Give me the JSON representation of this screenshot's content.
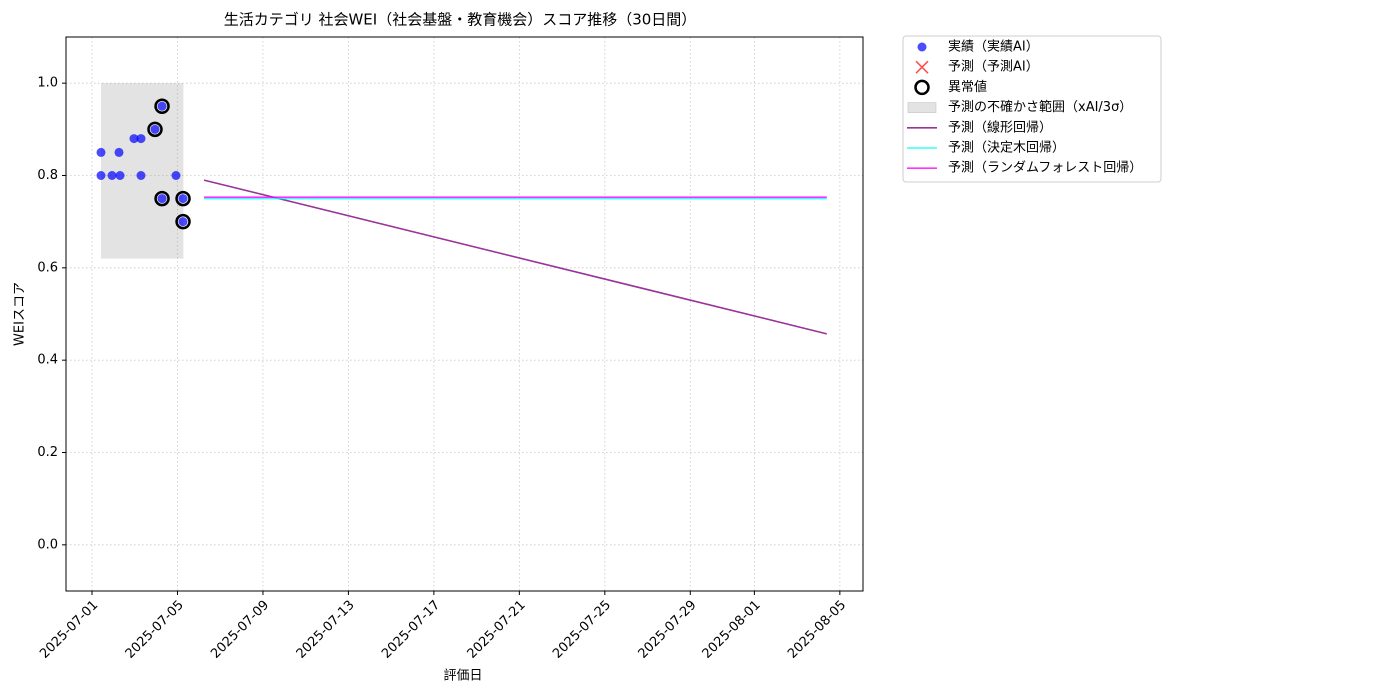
{
  "chart_data": {
    "type": "line",
    "title": "生活カテゴリ 社会WEI（社会基盤・教育機会）スコア推移（30日間）",
    "x_label": "評価日",
    "y_label": "WEIスコア",
    "xlim": [
      "2025-06-29T18:47",
      "2025-08-06T02:00"
    ],
    "xticks": [
      "2025-07-01",
      "2025-07-05",
      "2025-07-09",
      "2025-07-13",
      "2025-07-17",
      "2025-07-21",
      "2025-07-25",
      "2025-07-29",
      "2025-08-01",
      "2025-08-05"
    ],
    "ylim": [
      -0.1,
      1.1
    ],
    "yticks": [
      {
        "value": 0,
        "label": "0.0"
      },
      0.2,
      0.4,
      0.6,
      0.8,
      {
        "value": 1,
        "label": "1.0"
      }
    ],
    "grid": true,
    "legend": "outside-upper-right",
    "series": [
      {
        "name": "実績（実績AI）",
        "kind": "scatter",
        "color": "#0000ff",
        "x": [
          "2025-07-01T10:06",
          "2025-07-01T10:06",
          "2025-07-01T22:28",
          "2025-07-02T06:20",
          "2025-07-02T07:30",
          "2025-07-02T23:10",
          "2025-07-03T07:00",
          "2025-07-03T07:00",
          "2025-07-03T22:45",
          "2025-07-04T06:40",
          "2025-07-04T06:40",
          "2025-07-04T22:20",
          "2025-07-05T06:15",
          "2025-07-05T06:15"
        ],
        "values": [
          0.85,
          0.8,
          0.8,
          0.85,
          0.8,
          0.88,
          0.88,
          0.8,
          0.9,
          0.95,
          0.75,
          0.8,
          0.75,
          0.7
        ]
      },
      {
        "name": "予測（予測AI）",
        "kind": "cross",
        "color": "#ff0000",
        "x": [],
        "values": []
      },
      {
        "name": "異常値",
        "kind": "outlier",
        "color": "#000000",
        "x": [
          "2025-07-03T22:45",
          "2025-07-04T06:40",
          "2025-07-04T06:40",
          "2025-07-05T06:15",
          "2025-07-05T06:15"
        ],
        "values": [
          0.9,
          0.95,
          0.75,
          0.75,
          0.7
        ]
      },
      {
        "name": "予測の不確かさ範囲（xAI/3σ）",
        "kind": "band",
        "color": "#808080",
        "x": [
          "2025-07-01T10:06",
          "2025-07-05T06:40"
        ],
        "bounds": [
          0.62,
          1.0
        ]
      },
      {
        "name": "予測（線形回帰）",
        "kind": "line",
        "color": "#800080",
        "x": [
          "2025-07-06T05:45",
          "2025-08-04T09:20"
        ],
        "values": [
          0.79,
          0.457
        ]
      },
      {
        "name": "予測（決定木回帰）",
        "kind": "line",
        "color": "#00ffff",
        "x": [
          "2025-07-06T05:45",
          "2025-08-04T09:20"
        ],
        "values": [
          0.75,
          0.75
        ]
      },
      {
        "name": "予測（ランダムフォレスト回帰）",
        "kind": "line",
        "color": "#ff00ff",
        "x": [
          "2025-07-06T05:45",
          "2025-08-04T09:20"
        ],
        "values": [
          0.753,
          0.753
        ]
      }
    ]
  }
}
